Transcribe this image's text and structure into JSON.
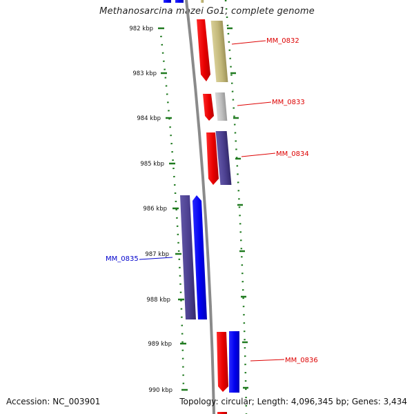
{
  "title": "Methanosarcina mazei Go1, complete genome",
  "footer": {
    "accession": "Accession: NC_003901",
    "summary": "Topology: circular; Length: 4,096,345 bp; Genes: 3,434"
  },
  "ticks": [
    {
      "kbp": 982,
      "label": "982 kbp"
    },
    {
      "kbp": 983,
      "label": "983 kbp"
    },
    {
      "kbp": 984,
      "label": "984 kbp"
    },
    {
      "kbp": 985,
      "label": "985 kbp"
    },
    {
      "kbp": 986,
      "label": "986 kbp"
    },
    {
      "kbp": 987,
      "label": "987 kbp"
    },
    {
      "kbp": 988,
      "label": "988 kbp"
    },
    {
      "kbp": 989,
      "label": "989 kbp"
    },
    {
      "kbp": 990,
      "label": "990 kbp"
    }
  ],
  "gene_labels": [
    {
      "name": "MM_0832",
      "color": "#dd0000"
    },
    {
      "name": "MM_0833",
      "color": "#dd0000"
    },
    {
      "name": "MM_0834",
      "color": "#dd0000"
    },
    {
      "name": "MM_0835",
      "color": "#0000cc"
    },
    {
      "name": "MM_0836",
      "color": "#dd0000"
    }
  ],
  "colors": {
    "backbone": "#8a8a8a",
    "tick": "#1f7a1f",
    "forward_feature": "#ee0000",
    "reverse_feature": "#0000ee",
    "cds_purple": "#4b3f8f",
    "cds_olive": "#c2b779",
    "cds_gray": "#bdbdbd"
  }
}
